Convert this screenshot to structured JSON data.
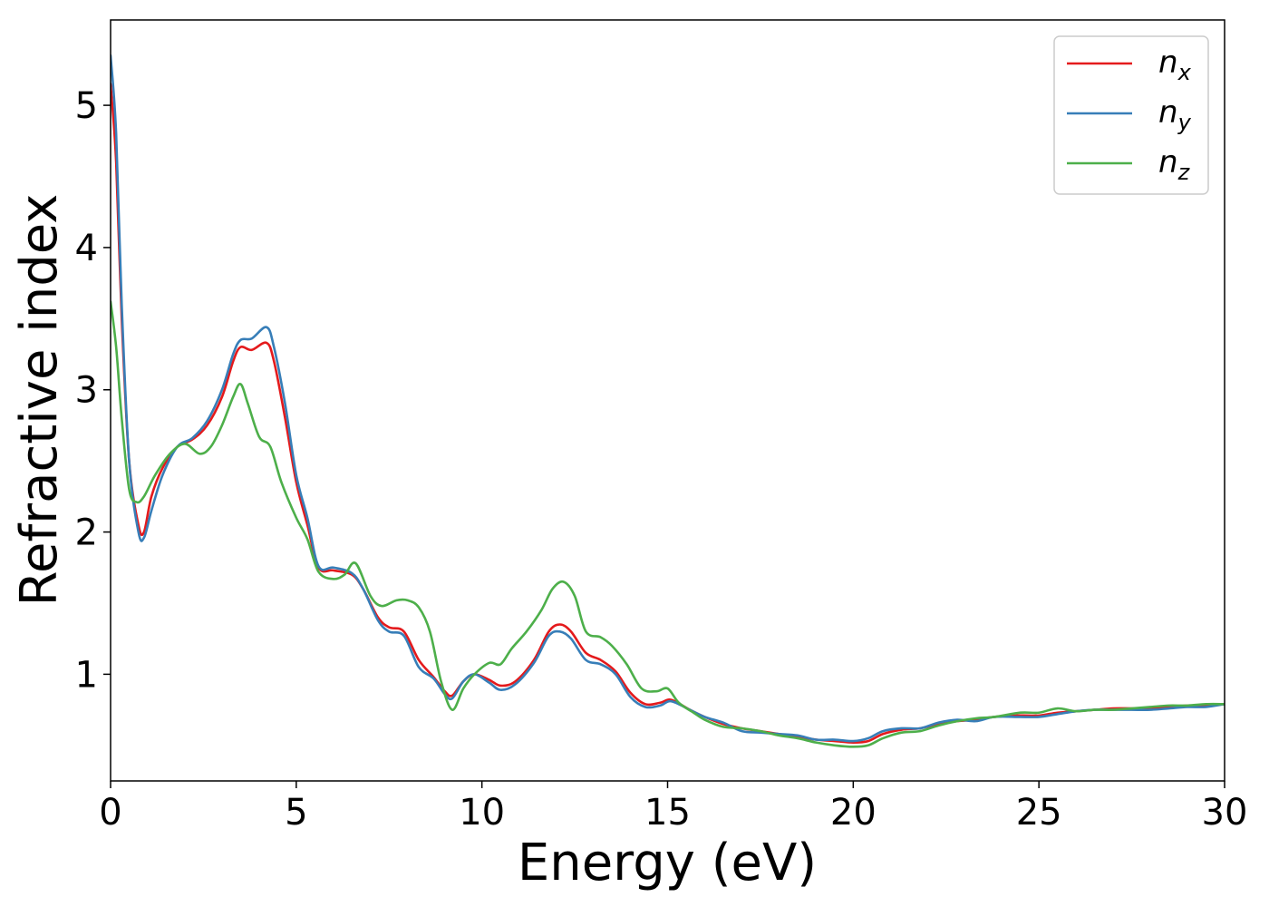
{
  "chart_data": {
    "type": "line",
    "xlabel": "Energy (eV)",
    "ylabel": "Refractive index",
    "xlim": [
      0,
      30
    ],
    "ylim": [
      0.25,
      5.6
    ],
    "xticks": [
      0,
      5,
      10,
      15,
      20,
      25,
      30
    ],
    "yticks": [
      1,
      2,
      3,
      4,
      5
    ],
    "grid": false,
    "legend_position": "top-right",
    "series": [
      {
        "name": "n_x",
        "legend_base": "n",
        "legend_sub": "x",
        "color": "#e41a1c",
        "points": [
          [
            0,
            5.15
          ],
          [
            0.15,
            4.6
          ],
          [
            0.3,
            3.5
          ],
          [
            0.5,
            2.5
          ],
          [
            0.75,
            2.05
          ],
          [
            0.9,
            2.0
          ],
          [
            1.1,
            2.25
          ],
          [
            1.4,
            2.45
          ],
          [
            1.8,
            2.6
          ],
          [
            2.2,
            2.65
          ],
          [
            2.6,
            2.75
          ],
          [
            3.0,
            2.95
          ],
          [
            3.3,
            3.2
          ],
          [
            3.5,
            3.3
          ],
          [
            3.8,
            3.28
          ],
          [
            4.2,
            3.33
          ],
          [
            4.4,
            3.2
          ],
          [
            4.7,
            2.8
          ],
          [
            5.0,
            2.35
          ],
          [
            5.3,
            2.05
          ],
          [
            5.6,
            1.75
          ],
          [
            6.0,
            1.73
          ],
          [
            6.5,
            1.7
          ],
          [
            6.8,
            1.6
          ],
          [
            7.2,
            1.4
          ],
          [
            7.5,
            1.33
          ],
          [
            7.9,
            1.3
          ],
          [
            8.3,
            1.1
          ],
          [
            8.7,
            0.98
          ],
          [
            9.0,
            0.88
          ],
          [
            9.2,
            0.85
          ],
          [
            9.5,
            0.95
          ],
          [
            9.8,
            1.0
          ],
          [
            10.2,
            0.96
          ],
          [
            10.5,
            0.92
          ],
          [
            10.9,
            0.95
          ],
          [
            11.4,
            1.1
          ],
          [
            11.8,
            1.3
          ],
          [
            12.1,
            1.35
          ],
          [
            12.4,
            1.3
          ],
          [
            12.8,
            1.15
          ],
          [
            13.2,
            1.1
          ],
          [
            13.6,
            1.02
          ],
          [
            14.0,
            0.87
          ],
          [
            14.4,
            0.79
          ],
          [
            14.8,
            0.8
          ],
          [
            15.1,
            0.82
          ],
          [
            15.6,
            0.75
          ],
          [
            16.0,
            0.7
          ],
          [
            16.5,
            0.65
          ],
          [
            17.0,
            0.62
          ],
          [
            17.5,
            0.6
          ],
          [
            18.0,
            0.58
          ],
          [
            18.5,
            0.56
          ],
          [
            19.0,
            0.54
          ],
          [
            19.5,
            0.53
          ],
          [
            20.0,
            0.52
          ],
          [
            20.4,
            0.53
          ],
          [
            20.8,
            0.58
          ],
          [
            21.3,
            0.61
          ],
          [
            21.8,
            0.62
          ],
          [
            22.3,
            0.65
          ],
          [
            22.8,
            0.67
          ],
          [
            23.3,
            0.68
          ],
          [
            23.8,
            0.7
          ],
          [
            24.5,
            0.71
          ],
          [
            25.0,
            0.71
          ],
          [
            25.5,
            0.73
          ],
          [
            26.0,
            0.74
          ],
          [
            26.5,
            0.75
          ],
          [
            27.0,
            0.76
          ],
          [
            27.5,
            0.76
          ],
          [
            28.0,
            0.76
          ],
          [
            28.5,
            0.77
          ],
          [
            29.0,
            0.78
          ],
          [
            29.5,
            0.78
          ],
          [
            30.0,
            0.79
          ]
        ]
      },
      {
        "name": "n_y",
        "legend_base": "n",
        "legend_sub": "y",
        "color": "#377eb8",
        "points": [
          [
            0,
            5.35
          ],
          [
            0.15,
            4.8
          ],
          [
            0.3,
            3.6
          ],
          [
            0.5,
            2.5
          ],
          [
            0.75,
            2.0
          ],
          [
            0.9,
            1.96
          ],
          [
            1.1,
            2.15
          ],
          [
            1.4,
            2.4
          ],
          [
            1.8,
            2.6
          ],
          [
            2.2,
            2.66
          ],
          [
            2.6,
            2.78
          ],
          [
            3.0,
            3.0
          ],
          [
            3.3,
            3.25
          ],
          [
            3.5,
            3.35
          ],
          [
            3.8,
            3.36
          ],
          [
            4.2,
            3.44
          ],
          [
            4.4,
            3.3
          ],
          [
            4.7,
            2.9
          ],
          [
            5.0,
            2.4
          ],
          [
            5.3,
            2.1
          ],
          [
            5.6,
            1.76
          ],
          [
            6.0,
            1.75
          ],
          [
            6.5,
            1.71
          ],
          [
            6.8,
            1.6
          ],
          [
            7.2,
            1.38
          ],
          [
            7.5,
            1.3
          ],
          [
            7.9,
            1.27
          ],
          [
            8.3,
            1.05
          ],
          [
            8.7,
            0.97
          ],
          [
            9.0,
            0.86
          ],
          [
            9.2,
            0.83
          ],
          [
            9.5,
            0.95
          ],
          [
            9.8,
            1.0
          ],
          [
            10.2,
            0.94
          ],
          [
            10.5,
            0.89
          ],
          [
            10.9,
            0.93
          ],
          [
            11.4,
            1.08
          ],
          [
            11.8,
            1.27
          ],
          [
            12.1,
            1.3
          ],
          [
            12.4,
            1.25
          ],
          [
            12.8,
            1.1
          ],
          [
            13.2,
            1.07
          ],
          [
            13.6,
            1.0
          ],
          [
            14.0,
            0.84
          ],
          [
            14.4,
            0.77
          ],
          [
            14.8,
            0.78
          ],
          [
            15.1,
            0.81
          ],
          [
            15.6,
            0.75
          ],
          [
            16.0,
            0.7
          ],
          [
            16.5,
            0.66
          ],
          [
            17.0,
            0.6
          ],
          [
            17.5,
            0.59
          ],
          [
            18.0,
            0.58
          ],
          [
            18.5,
            0.57
          ],
          [
            19.0,
            0.54
          ],
          [
            19.5,
            0.54
          ],
          [
            20.0,
            0.53
          ],
          [
            20.4,
            0.55
          ],
          [
            20.8,
            0.6
          ],
          [
            21.3,
            0.62
          ],
          [
            21.8,
            0.62
          ],
          [
            22.3,
            0.66
          ],
          [
            22.8,
            0.68
          ],
          [
            23.3,
            0.67
          ],
          [
            23.8,
            0.7
          ],
          [
            24.5,
            0.7
          ],
          [
            25.0,
            0.7
          ],
          [
            25.5,
            0.72
          ],
          [
            26.0,
            0.74
          ],
          [
            26.5,
            0.75
          ],
          [
            27.0,
            0.75
          ],
          [
            27.5,
            0.75
          ],
          [
            28.0,
            0.75
          ],
          [
            28.5,
            0.76
          ],
          [
            29.0,
            0.77
          ],
          [
            29.5,
            0.77
          ],
          [
            30.0,
            0.79
          ]
        ]
      },
      {
        "name": "n_z",
        "legend_base": "n",
        "legend_sub": "z",
        "color": "#4daf4a",
        "points": [
          [
            0,
            3.62
          ],
          [
            0.15,
            3.3
          ],
          [
            0.3,
            2.8
          ],
          [
            0.5,
            2.3
          ],
          [
            0.7,
            2.21
          ],
          [
            0.9,
            2.25
          ],
          [
            1.2,
            2.4
          ],
          [
            1.6,
            2.55
          ],
          [
            2.0,
            2.62
          ],
          [
            2.4,
            2.55
          ],
          [
            2.7,
            2.6
          ],
          [
            3.0,
            2.75
          ],
          [
            3.3,
            2.95
          ],
          [
            3.5,
            3.04
          ],
          [
            3.7,
            2.9
          ],
          [
            4.0,
            2.67
          ],
          [
            4.3,
            2.6
          ],
          [
            4.6,
            2.35
          ],
          [
            5.0,
            2.1
          ],
          [
            5.3,
            1.95
          ],
          [
            5.6,
            1.72
          ],
          [
            6.0,
            1.67
          ],
          [
            6.3,
            1.7
          ],
          [
            6.6,
            1.78
          ],
          [
            7.0,
            1.55
          ],
          [
            7.3,
            1.48
          ],
          [
            7.7,
            1.52
          ],
          [
            8.0,
            1.52
          ],
          [
            8.3,
            1.47
          ],
          [
            8.6,
            1.3
          ],
          [
            8.9,
            0.95
          ],
          [
            9.2,
            0.75
          ],
          [
            9.5,
            0.9
          ],
          [
            9.8,
            1.0
          ],
          [
            10.2,
            1.08
          ],
          [
            10.5,
            1.07
          ],
          [
            10.8,
            1.18
          ],
          [
            11.2,
            1.3
          ],
          [
            11.6,
            1.45
          ],
          [
            11.9,
            1.6
          ],
          [
            12.2,
            1.65
          ],
          [
            12.5,
            1.55
          ],
          [
            12.8,
            1.3
          ],
          [
            13.2,
            1.26
          ],
          [
            13.5,
            1.2
          ],
          [
            13.9,
            1.07
          ],
          [
            14.3,
            0.9
          ],
          [
            14.7,
            0.88
          ],
          [
            15.0,
            0.9
          ],
          [
            15.3,
            0.8
          ],
          [
            15.7,
            0.73
          ],
          [
            16.0,
            0.68
          ],
          [
            16.5,
            0.63
          ],
          [
            17.0,
            0.62
          ],
          [
            17.5,
            0.6
          ],
          [
            18.0,
            0.57
          ],
          [
            18.5,
            0.55
          ],
          [
            19.0,
            0.52
          ],
          [
            19.5,
            0.5
          ],
          [
            20.0,
            0.49
          ],
          [
            20.4,
            0.5
          ],
          [
            20.8,
            0.55
          ],
          [
            21.3,
            0.59
          ],
          [
            21.8,
            0.6
          ],
          [
            22.3,
            0.64
          ],
          [
            22.8,
            0.67
          ],
          [
            23.3,
            0.69
          ],
          [
            23.8,
            0.7
          ],
          [
            24.5,
            0.73
          ],
          [
            25.0,
            0.73
          ],
          [
            25.5,
            0.76
          ],
          [
            26.0,
            0.74
          ],
          [
            26.5,
            0.75
          ],
          [
            27.0,
            0.75
          ],
          [
            27.5,
            0.76
          ],
          [
            28.0,
            0.77
          ],
          [
            28.5,
            0.78
          ],
          [
            29.0,
            0.78
          ],
          [
            29.5,
            0.79
          ],
          [
            30.0,
            0.79
          ]
        ]
      }
    ]
  }
}
